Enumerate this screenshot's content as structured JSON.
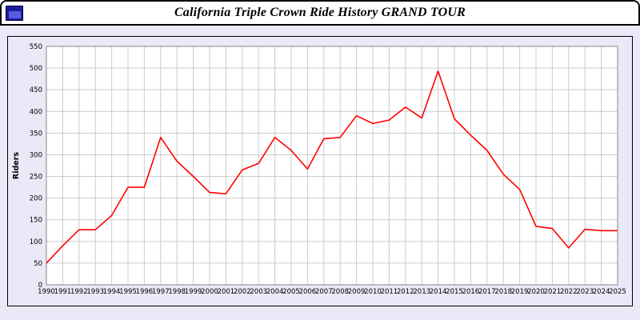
{
  "header": {
    "title": "California Triple Crown Ride History GRAND TOUR",
    "app_icon": "window-icon"
  },
  "colors": {
    "page_background": "#e9e9f7",
    "plot_background": "#ffffff",
    "grid": "#cccccc",
    "axis": "#888888",
    "line": "#ff0000"
  },
  "chart_data": {
    "type": "line",
    "title": "California Triple Crown Ride History GRAND TOUR",
    "xlabel": "",
    "ylabel": "Riders",
    "ylim": [
      0,
      550
    ],
    "ytick_step": 50,
    "grid": true,
    "legend": "none",
    "line_color": "#ff0000",
    "categories": [
      "1990",
      "1991",
      "1992",
      "1993",
      "1994",
      "1995",
      "1996",
      "1997",
      "1998",
      "1999",
      "2000",
      "2001",
      "2002",
      "2003",
      "2004",
      "2005",
      "2006",
      "2007",
      "2008",
      "2009",
      "2010",
      "2011",
      "2012",
      "2013",
      "2014",
      "2015",
      "2016",
      "2017",
      "2018",
      "2019",
      "2020",
      "2021",
      "2022",
      "2023",
      "2024",
      "2025"
    ],
    "values": [
      50,
      90,
      127,
      127,
      160,
      225,
      225,
      340,
      285,
      250,
      213,
      210,
      265,
      280,
      340,
      310,
      267,
      337,
      340,
      390,
      372,
      380,
      410,
      385,
      493,
      383,
      345,
      310,
      255,
      220,
      135,
      130,
      85,
      128,
      125,
      125
    ]
  }
}
